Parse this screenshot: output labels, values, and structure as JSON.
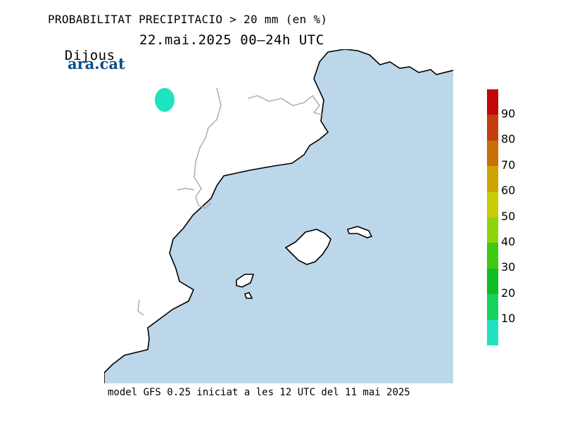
{
  "header": {
    "title": "PROBABILITAT PRECIPITACIO > 20 mm (en %)",
    "day": "Dijous",
    "period": "22.mai.2025 00—24h UTC"
  },
  "logo": {
    "text": "ara.cat",
    "color": "#0b4f8a"
  },
  "footer": {
    "text": "model GFS 0.25 iniciat a les 12 UTC del 11 mai 2025"
  },
  "colors": {
    "sea": "#bcd7ea",
    "land": "#ffffff",
    "coast": "#000000",
    "border": "#a8a8a8"
  },
  "legend": {
    "colors": [
      "#1fe3c0",
      "#15d35e",
      "#0ebd21",
      "#3cc912",
      "#8fd50c",
      "#c9cc06",
      "#cda302",
      "#c8700a",
      "#c43d0c",
      "#c20808"
    ],
    "labels": [
      "90",
      "80",
      "70",
      "60",
      "50",
      "40",
      "30",
      "20",
      "10"
    ]
  },
  "forecast_blobs": [
    {
      "label": "probabilitat 10-20 %",
      "color": "#1fe3c0"
    }
  ]
}
